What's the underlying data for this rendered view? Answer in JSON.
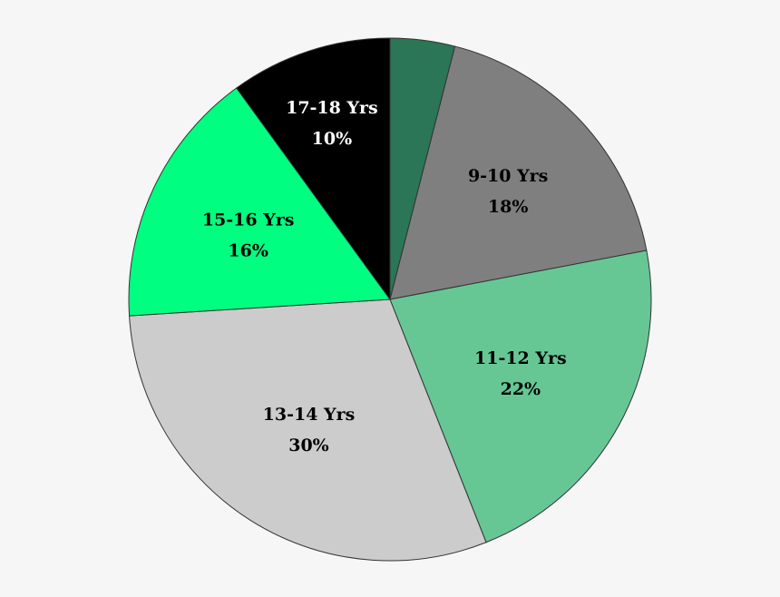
{
  "chart_data": {
    "type": "pie",
    "title": "",
    "start": "top",
    "direction": "clockwise",
    "slices": [
      {
        "label": "",
        "pct_label": "",
        "value": 4,
        "color": "#2a7656",
        "text_color": "#000000"
      },
      {
        "label": "9-10 Yrs",
        "pct_label": "18%",
        "value": 18,
        "color": "#7f7f7f",
        "text_color": "#000000"
      },
      {
        "label": "11-12 Yrs",
        "pct_label": "22%",
        "value": 22,
        "color": "#66c795",
        "text_color": "#000000"
      },
      {
        "label": "13-14 Yrs",
        "pct_label": "30%",
        "value": 30,
        "color": "#cccccc",
        "text_color": "#000000"
      },
      {
        "label": "15-16 Yrs",
        "pct_label": "16%",
        "value": 16,
        "color": "#00ff80",
        "text_color": "#000000"
      },
      {
        "label": "17-18 Yrs",
        "pct_label": "10%",
        "value": 10,
        "color": "#000000",
        "text_color": "#ffffff"
      }
    ]
  }
}
